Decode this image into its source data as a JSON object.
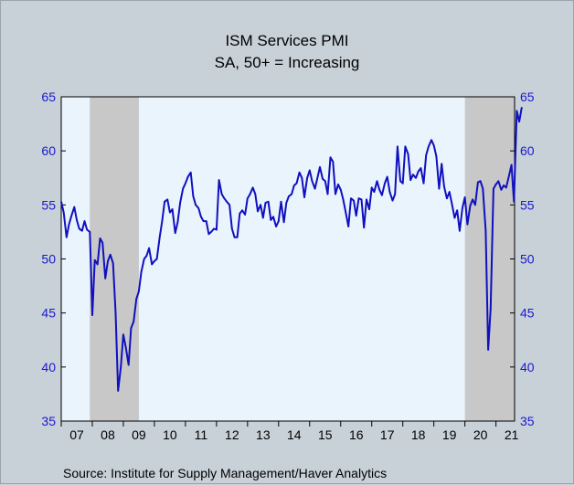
{
  "chart_data": {
    "type": "line",
    "title": "ISM Services PMI",
    "subtitle": "SA, 50+ = Increasing",
    "source": "Source:   Institute for Supply Management/Haver Analytics",
    "ylim": [
      35,
      65
    ],
    "yticks": [
      "35",
      "40",
      "45",
      "50",
      "55",
      "60",
      "65"
    ],
    "xticks": [
      "07",
      "08",
      "09",
      "10",
      "11",
      "12",
      "13",
      "14",
      "15",
      "16",
      "17",
      "18",
      "19",
      "20",
      "21"
    ],
    "x_start_year": 2007,
    "x_end_year": 2021.6,
    "grid": false,
    "recessions": [
      {
        "start": 2007.92,
        "end": 2009.5
      },
      {
        "start": 2020.0,
        "end": 2021.6
      }
    ],
    "colors": {
      "plot_bg": "#eaf4fc",
      "recession": "#c8c8c8",
      "line": "#1010c0",
      "axis_text": "#1a1ad0"
    },
    "series": [
      {
        "name": "",
        "values": [
          [
            2007.0,
            55.3
          ],
          [
            2007.08,
            54.3
          ],
          [
            2007.17,
            52.0
          ],
          [
            2007.25,
            53.2
          ],
          [
            2007.33,
            54.0
          ],
          [
            2007.42,
            54.8
          ],
          [
            2007.5,
            53.6
          ],
          [
            2007.58,
            52.8
          ],
          [
            2007.67,
            52.6
          ],
          [
            2007.75,
            53.5
          ],
          [
            2007.83,
            52.7
          ],
          [
            2007.92,
            52.5
          ],
          [
            2008.0,
            44.8
          ],
          [
            2008.08,
            49.9
          ],
          [
            2008.17,
            49.5
          ],
          [
            2008.25,
            51.9
          ],
          [
            2008.33,
            51.5
          ],
          [
            2008.42,
            48.2
          ],
          [
            2008.5,
            49.8
          ],
          [
            2008.58,
            50.4
          ],
          [
            2008.67,
            49.6
          ],
          [
            2008.75,
            45.0
          ],
          [
            2008.83,
            37.8
          ],
          [
            2008.92,
            40.0
          ],
          [
            2009.0,
            43.0
          ],
          [
            2009.08,
            41.8
          ],
          [
            2009.17,
            40.2
          ],
          [
            2009.25,
            43.6
          ],
          [
            2009.33,
            44.2
          ],
          [
            2009.42,
            46.3
          ],
          [
            2009.5,
            47.0
          ],
          [
            2009.58,
            48.8
          ],
          [
            2009.67,
            50.0
          ],
          [
            2009.75,
            50.3
          ],
          [
            2009.83,
            51.0
          ],
          [
            2009.92,
            49.5
          ],
          [
            2010.0,
            49.8
          ],
          [
            2010.08,
            50.0
          ],
          [
            2010.17,
            52.0
          ],
          [
            2010.25,
            53.5
          ],
          [
            2010.33,
            55.3
          ],
          [
            2010.42,
            55.5
          ],
          [
            2010.5,
            54.3
          ],
          [
            2010.58,
            54.6
          ],
          [
            2010.67,
            52.4
          ],
          [
            2010.75,
            53.4
          ],
          [
            2010.83,
            55.2
          ],
          [
            2010.92,
            56.5
          ],
          [
            2011.0,
            57.0
          ],
          [
            2011.08,
            57.6
          ],
          [
            2011.17,
            58.0
          ],
          [
            2011.25,
            55.8
          ],
          [
            2011.33,
            55.0
          ],
          [
            2011.42,
            54.7
          ],
          [
            2011.5,
            53.9
          ],
          [
            2011.58,
            53.5
          ],
          [
            2011.67,
            53.5
          ],
          [
            2011.75,
            52.3
          ],
          [
            2011.83,
            52.5
          ],
          [
            2011.92,
            52.8
          ],
          [
            2012.0,
            52.7
          ],
          [
            2012.08,
            57.3
          ],
          [
            2012.17,
            56.0
          ],
          [
            2012.25,
            55.6
          ],
          [
            2012.33,
            55.3
          ],
          [
            2012.42,
            55.0
          ],
          [
            2012.5,
            52.8
          ],
          [
            2012.58,
            52.0
          ],
          [
            2012.67,
            52.0
          ],
          [
            2012.75,
            54.2
          ],
          [
            2012.83,
            54.5
          ],
          [
            2012.92,
            54.1
          ],
          [
            2013.0,
            55.6
          ],
          [
            2013.08,
            56.0
          ],
          [
            2013.17,
            56.6
          ],
          [
            2013.25,
            56.0
          ],
          [
            2013.33,
            54.4
          ],
          [
            2013.42,
            55.0
          ],
          [
            2013.5,
            53.8
          ],
          [
            2013.58,
            55.2
          ],
          [
            2013.67,
            55.3
          ],
          [
            2013.75,
            53.6
          ],
          [
            2013.83,
            53.9
          ],
          [
            2013.92,
            53.0
          ],
          [
            2014.0,
            53.5
          ],
          [
            2014.08,
            55.3
          ],
          [
            2014.17,
            53.4
          ],
          [
            2014.25,
            55.2
          ],
          [
            2014.33,
            55.8
          ],
          [
            2014.42,
            56.0
          ],
          [
            2014.5,
            56.8
          ],
          [
            2014.58,
            57.0
          ],
          [
            2014.67,
            58.0
          ],
          [
            2014.75,
            57.5
          ],
          [
            2014.83,
            55.7
          ],
          [
            2014.92,
            57.5
          ],
          [
            2015.0,
            58.2
          ],
          [
            2015.08,
            57.2
          ],
          [
            2015.17,
            56.5
          ],
          [
            2015.25,
            57.5
          ],
          [
            2015.33,
            58.5
          ],
          [
            2015.42,
            57.4
          ],
          [
            2015.5,
            57.2
          ],
          [
            2015.58,
            56.0
          ],
          [
            2015.67,
            59.4
          ],
          [
            2015.75,
            59.0
          ],
          [
            2015.83,
            56.0
          ],
          [
            2015.92,
            56.9
          ],
          [
            2016.0,
            56.4
          ],
          [
            2016.08,
            55.5
          ],
          [
            2016.17,
            54.2
          ],
          [
            2016.25,
            53.0
          ],
          [
            2016.33,
            55.6
          ],
          [
            2016.42,
            55.4
          ],
          [
            2016.5,
            54.0
          ],
          [
            2016.58,
            55.6
          ],
          [
            2016.67,
            55.5
          ],
          [
            2016.75,
            52.9
          ],
          [
            2016.83,
            55.5
          ],
          [
            2016.92,
            54.6
          ],
          [
            2017.0,
            56.6
          ],
          [
            2017.08,
            56.2
          ],
          [
            2017.17,
            57.2
          ],
          [
            2017.25,
            56.4
          ],
          [
            2017.33,
            55.9
          ],
          [
            2017.42,
            57.0
          ],
          [
            2017.5,
            57.6
          ],
          [
            2017.58,
            56.2
          ],
          [
            2017.67,
            55.4
          ],
          [
            2017.75,
            56.0
          ],
          [
            2017.83,
            60.4
          ],
          [
            2017.92,
            57.2
          ],
          [
            2018.0,
            57.0
          ],
          [
            2018.08,
            60.4
          ],
          [
            2018.17,
            59.7
          ],
          [
            2018.25,
            57.3
          ],
          [
            2018.33,
            57.8
          ],
          [
            2018.42,
            57.5
          ],
          [
            2018.5,
            58.1
          ],
          [
            2018.58,
            58.4
          ],
          [
            2018.67,
            57.0
          ],
          [
            2018.75,
            59.6
          ],
          [
            2018.83,
            60.4
          ],
          [
            2018.92,
            61.0
          ],
          [
            2019.0,
            60.5
          ],
          [
            2019.08,
            59.5
          ],
          [
            2019.17,
            56.5
          ],
          [
            2019.25,
            58.8
          ],
          [
            2019.33,
            56.7
          ],
          [
            2019.42,
            55.6
          ],
          [
            2019.5,
            56.2
          ],
          [
            2019.58,
            55.1
          ],
          [
            2019.67,
            53.8
          ],
          [
            2019.75,
            54.5
          ],
          [
            2019.83,
            52.6
          ],
          [
            2019.92,
            54.7
          ],
          [
            2020.0,
            55.7
          ],
          [
            2020.08,
            53.2
          ],
          [
            2020.17,
            54.9
          ],
          [
            2020.25,
            55.5
          ],
          [
            2020.33,
            55.0
          ],
          [
            2020.42,
            57.1
          ],
          [
            2020.5,
            57.2
          ],
          [
            2020.58,
            56.5
          ],
          [
            2020.67,
            52.6
          ],
          [
            2020.75,
            41.6
          ],
          [
            2020.83,
            45.4
          ],
          [
            2020.92,
            56.5
          ],
          [
            2021.0,
            56.9
          ],
          [
            2021.08,
            57.2
          ],
          [
            2021.17,
            56.4
          ],
          [
            2021.25,
            56.8
          ],
          [
            2021.33,
            56.6
          ],
          [
            2021.42,
            57.7
          ],
          [
            2021.5,
            58.7
          ],
          [
            2021.58,
            55.3
          ],
          [
            2021.67,
            63.7
          ],
          [
            2021.75,
            62.7
          ],
          [
            2021.83,
            64.0
          ]
        ]
      }
    ]
  }
}
